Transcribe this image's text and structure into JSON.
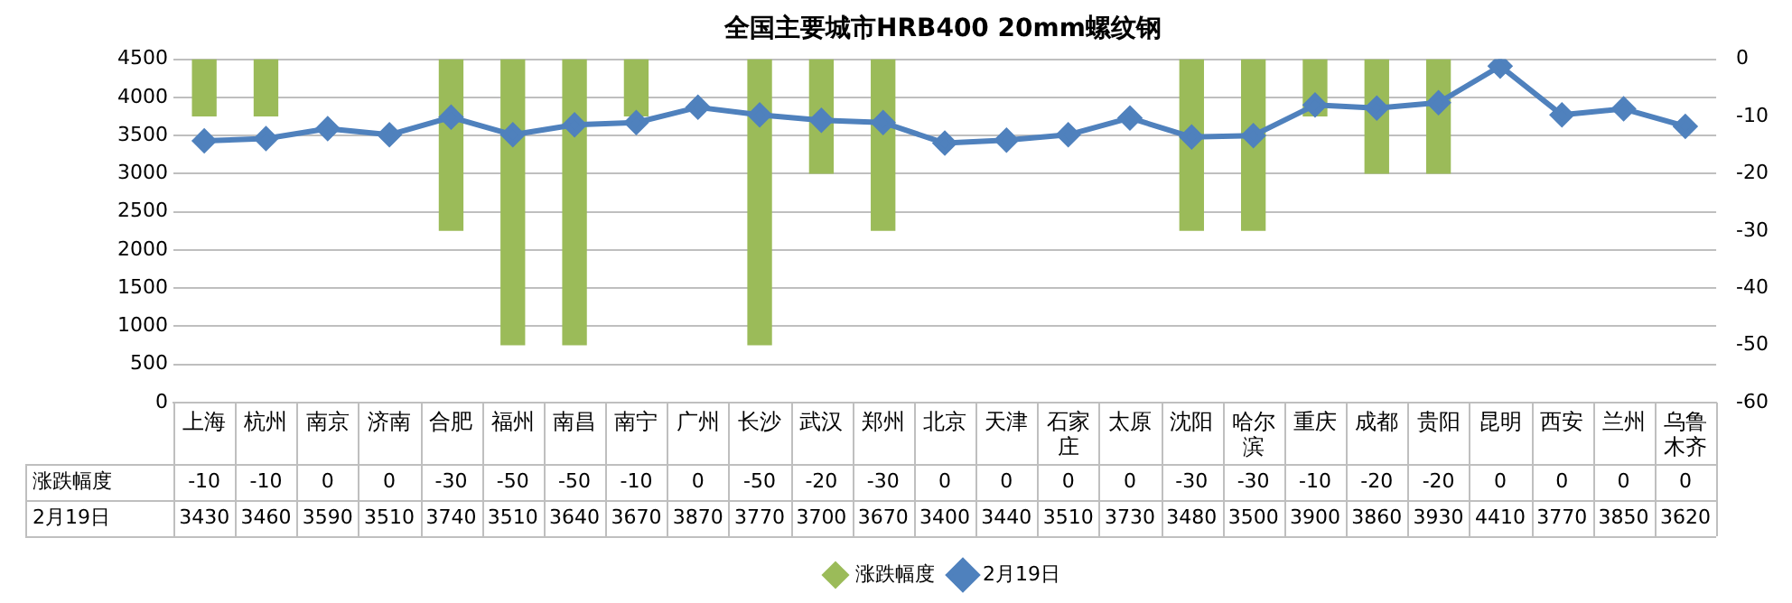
{
  "chart_data": {
    "type": "bar",
    "title": "全国主要城市HRB400 20mm螺纹钢",
    "categories": [
      "上海",
      "杭州",
      "南京",
      "济南",
      "合肥",
      "福州",
      "南昌",
      "南宁",
      "广州",
      "长沙",
      "武汉",
      "郑州",
      "北京",
      "天津",
      "石家庄",
      "太原",
      "沈阳",
      "哈尔滨",
      "重庆",
      "成都",
      "贵阳",
      "昆明",
      "西安",
      "兰州",
      "乌鲁木齐"
    ],
    "series": [
      {
        "name": "涨跌幅度",
        "axis": "y2",
        "color": "#9bbb59",
        "values": [
          -10,
          -10,
          0,
          0,
          -30,
          -50,
          -50,
          -10,
          0,
          -50,
          -20,
          -30,
          0,
          0,
          0,
          0,
          -30,
          -30,
          -10,
          -20,
          -20,
          0,
          0,
          0,
          0
        ]
      },
      {
        "name": "2月19日",
        "type": "line",
        "color": "#4f81bd",
        "values": [
          3430,
          3460,
          3590,
          3510,
          3740,
          3510,
          3640,
          3670,
          3870,
          3770,
          3700,
          3670,
          3400,
          3440,
          3510,
          3730,
          3480,
          3500,
          3900,
          3860,
          3930,
          4410,
          3770,
          3850,
          3620
        ]
      }
    ],
    "ylim": [
      0,
      4500
    ],
    "yticks": [
      0,
      500,
      1000,
      1500,
      2000,
      2500,
      3000,
      3500,
      4000,
      4500
    ],
    "y2lim": [
      -60,
      0
    ],
    "y2ticks": [
      -60,
      -50,
      -40,
      -30,
      -20,
      -10,
      0
    ],
    "grid": "y",
    "legend": "bottom",
    "marker": "diamond",
    "data_labels": true
  }
}
